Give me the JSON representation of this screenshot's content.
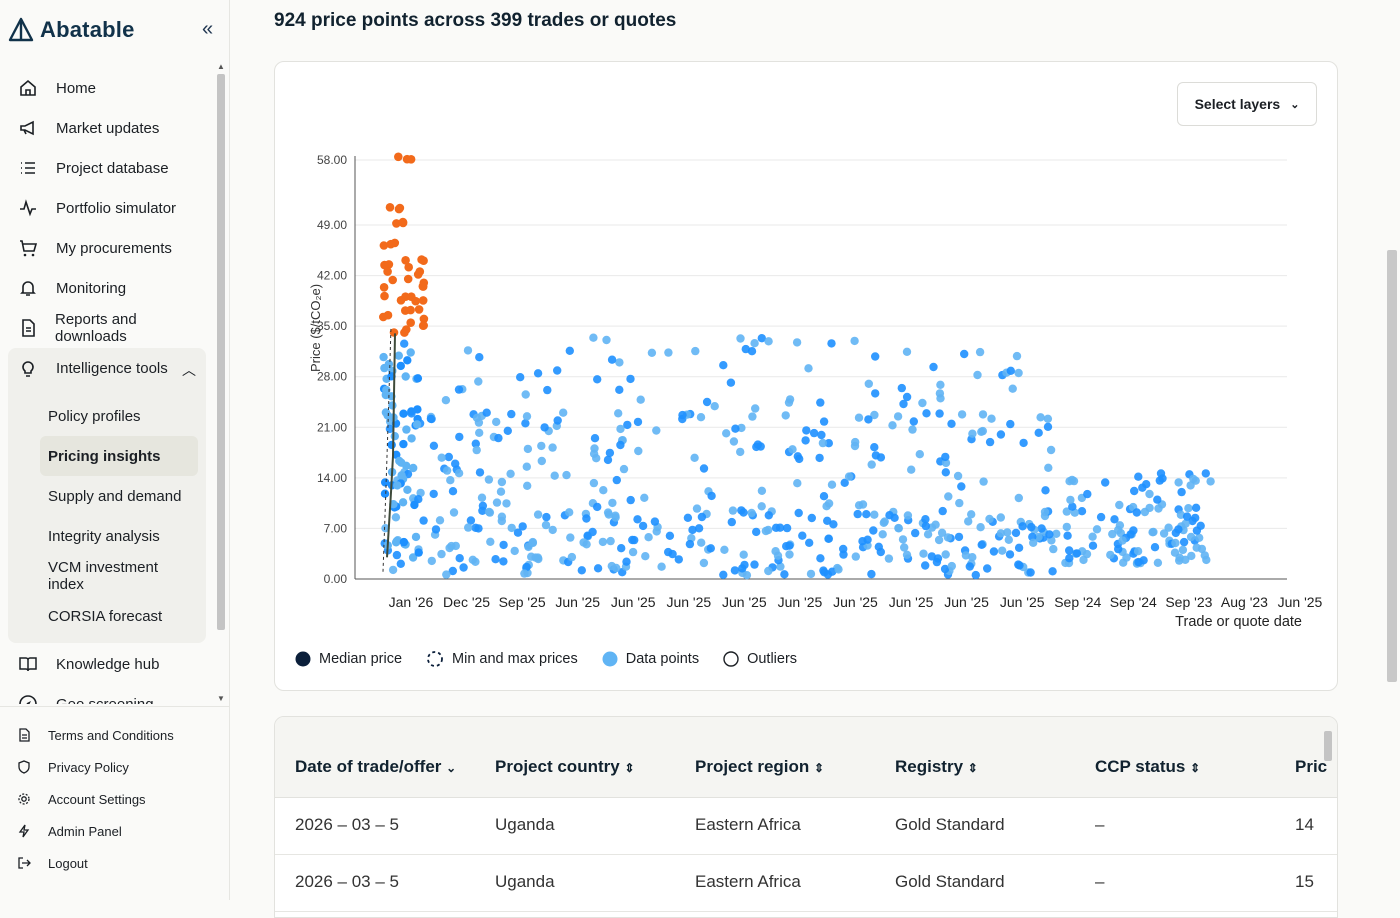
{
  "brand": {
    "name": "Abatable"
  },
  "nav": {
    "items": [
      {
        "label": "Home",
        "icon": "home-icon"
      },
      {
        "label": "Market updates",
        "icon": "megaphone-icon"
      },
      {
        "label": "Project database",
        "icon": "list-icon"
      },
      {
        "label": "Portfolio simulator",
        "icon": "pulse-icon"
      },
      {
        "label": "My procurements",
        "icon": "cart-icon"
      },
      {
        "label": "Monitoring",
        "icon": "bell-icon"
      },
      {
        "label": "Reports and downloads",
        "icon": "document-icon"
      },
      {
        "label": "Intelligence tools",
        "icon": "lightbulb-icon"
      }
    ],
    "intelligence_sub": [
      "Policy profiles",
      "Pricing insights",
      "Supply and demand",
      "Integrity analysis",
      "VCM investment index",
      "CORSIA forecast"
    ],
    "active_sub": "Pricing insights",
    "after": [
      {
        "label": "Knowledge hub",
        "icon": "book-icon"
      },
      {
        "label": "Geo screening",
        "icon": "compass-icon"
      }
    ]
  },
  "footer": [
    {
      "label": "Terms and Conditions",
      "icon": "document-icon"
    },
    {
      "label": "Privacy Policy",
      "icon": "shield-icon"
    },
    {
      "label": "Account Settings",
      "icon": "gear-icon"
    },
    {
      "label": "Admin Panel",
      "icon": "bolt-icon"
    },
    {
      "label": "Logout",
      "icon": "logout-icon"
    }
  ],
  "main": {
    "headline": "924 price points across 399 trades or quotes",
    "select_layers": "Select layers"
  },
  "colors": {
    "median": "#0b1f3a",
    "points_blue": "#1e90ff",
    "points_light": "#60b4f4",
    "outliers": "#f26a1b"
  },
  "chart_data": {
    "type": "scatter",
    "ylabel": "Price ($/tCO₂e)",
    "xlabel": "Trade or quote date",
    "yticks": [
      "0.00",
      "7.00",
      "14.00",
      "21.00",
      "28.00",
      "35.00",
      "42.00",
      "49.00",
      "58.00"
    ],
    "ylim": [
      0,
      58
    ],
    "xtick_labels": [
      "Jan '26",
      "Dec '25",
      "Sep '25",
      "Jun '25",
      "Jun '25",
      "Jun '25",
      "Jun '25",
      "Jun '25",
      "Jun '25",
      "Jun '25",
      "Jun '25",
      "Jun '25",
      "Sep '24",
      "Sep '24",
      "Sep '23",
      "Aug '23",
      "Jun '25"
    ],
    "grid": true,
    "legend": [
      {
        "label": "Median price",
        "marker": "filled-circle"
      },
      {
        "label": "Min and max prices",
        "marker": "dashed-circle"
      },
      {
        "label": "Data points",
        "marker": "light-blue-circle"
      },
      {
        "label": "Outliers",
        "marker": "hollow-circle"
      }
    ],
    "outliers": [
      58,
      51,
      49,
      46,
      44,
      43,
      42,
      41,
      40,
      39,
      38,
      37,
      36,
      35,
      34
    ],
    "median_line": [
      3,
      12,
      17,
      34
    ],
    "minmax_line": [
      1,
      16,
      35
    ]
  },
  "table": {
    "columns": [
      "Date of trade/offer",
      "Project country",
      "Project region",
      "Registry",
      "CCP status",
      "Pric"
    ],
    "rows": [
      [
        "2026 – 03 – 5",
        "Uganda",
        "Eastern Africa",
        "Gold Standard",
        "–",
        "14"
      ],
      [
        "2026 – 03 – 5",
        "Uganda",
        "Eastern Africa",
        "Gold Standard",
        "–",
        "15"
      ]
    ]
  }
}
